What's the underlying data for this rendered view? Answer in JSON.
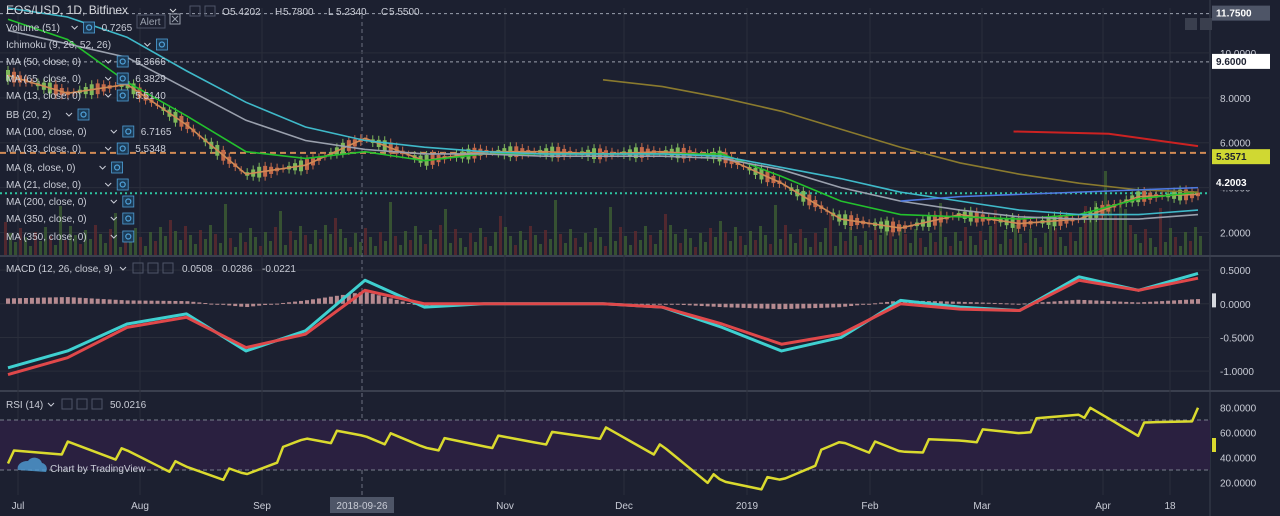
{
  "symbol": {
    "title": "EOS/USD, 1D, Bitfinex",
    "alert_label": "Alert",
    "ohlc": {
      "o_label": "O",
      "o": "5.4202",
      "h_label": "H",
      "h": "5.7800",
      "l_label": "L",
      "l": "5.2340",
      "c_label": "C",
      "c": "5.5500"
    }
  },
  "indicators": [
    {
      "label": "Volume (51)",
      "value": "0.7265",
      "color": "#4f9fd6"
    },
    {
      "label": "Ichimoku (9, 26, 52, 26)",
      "value": "",
      "color": "#d6d8de"
    },
    {
      "label": "MA (50, close, 0)",
      "value": "5.3666",
      "color": "#23c12d"
    },
    {
      "label": "MA (65, close, 0)",
      "value": "6.3829",
      "color": "#d6d8de"
    },
    {
      "label": "MA (13, close, 0)",
      "value": "5.5140",
      "color": "#e8a24a"
    },
    {
      "label": "BB (20, 2)",
      "value": "",
      "color": "#d6d8de"
    },
    {
      "label": "MA (100, close, 0)",
      "value": "6.7165",
      "color": "#3fb9c9"
    },
    {
      "label": "MA (33, close, 0)",
      "value": "5.5348",
      "color": "#4f7ae0"
    },
    {
      "label": "MA (8, close, 0)",
      "value": "",
      "color": "#d6d8de"
    },
    {
      "label": "MA (21, close, 0)",
      "value": "",
      "color": "#d6d8de"
    },
    {
      "label": "MA (200, close, 0)",
      "value": "",
      "color": "#d6d8de"
    },
    {
      "label": "MA (350, close, 0)",
      "value": "",
      "color": "#9aa0ad"
    },
    {
      "label": "MA (350, close, 0)",
      "value": "",
      "color": "#d6d8de"
    }
  ],
  "macd": {
    "label": "MACD (12, 26, close, 9)",
    "v1": "0.0508",
    "v2": "0.0286",
    "v3": "-0.0221",
    "c1": "#d6d8de",
    "c2": "#3fd0d0",
    "c3": "#e0484a"
  },
  "rsi": {
    "label": "RSI (14)",
    "value": "50.0216",
    "color": "#dada2e"
  },
  "watermark": "Chart by TradingView",
  "crosshair_date": "2018-09-26",
  "colors": {
    "background": "#1c2030",
    "grid": "#2a2e3b",
    "dashed_line": "#9aa0ad",
    "support_line": "#2ec4a0",
    "red_line": "#cc2222"
  },
  "price_tags": [
    {
      "text": "11.7500",
      "bg": "#4e5567",
      "fg": "#ffffff"
    },
    {
      "text": "9.6000",
      "bg": "#ffffff",
      "fg": "#1c2030"
    },
    {
      "text": "5.3571",
      "bg": "#d0d832",
      "fg": "#1c2030"
    },
    {
      "text": "4.2003",
      "bg": "#1c2030",
      "fg": "#ffffff"
    }
  ],
  "chart_data": [
    {
      "type": "line",
      "panel": "price",
      "title": "EOS/USD, 1D, Bitfinex",
      "y_ticks": [
        2.0,
        4.0,
        6.0,
        8.0,
        10.0
      ],
      "y_tick_labels": [
        "2.0000",
        "4.0000",
        "6.0000",
        "8.0000",
        "10.0000"
      ],
      "x_tick_labels": [
        "Jul",
        "Aug",
        "Sep",
        "Nov",
        "Dec",
        "2019",
        "Feb",
        "Mar",
        "Apr",
        "18"
      ],
      "ylim": [
        1.0,
        12.0
      ],
      "horizontal_lines": [
        {
          "value": 11.75,
          "style": "dashed"
        },
        {
          "value": 9.6,
          "style": "dashed"
        },
        {
          "value": 5.55,
          "style": "dashed-orange"
        },
        {
          "value": 3.75,
          "style": "dotted-teal"
        }
      ],
      "x": [
        0,
        5,
        10,
        15,
        20,
        25,
        30,
        35,
        40,
        45,
        50,
        55,
        60,
        65,
        70,
        75,
        80,
        85,
        90,
        95,
        100
      ],
      "series": [
        {
          "color": "#d08a55",
          "values": [
            9.0,
            8.2,
            8.6,
            6.8,
            4.6,
            5.0,
            6.2,
            5.2,
            5.6,
            5.6,
            5.5,
            5.6,
            5.4,
            4.2,
            2.6,
            2.2,
            2.8,
            2.4,
            2.6,
            3.6,
            3.7
          ]
        },
        {
          "color": "#23c12d",
          "values": [
            11.5,
            10.6,
            8.7,
            7.2,
            5.6,
            5.3,
            5.6,
            5.2,
            5.5,
            5.5,
            5.5,
            5.5,
            5.5,
            4.5,
            3.4,
            2.8,
            2.7,
            2.6,
            2.8,
            3.5,
            3.8
          ]
        },
        {
          "color": "#3fb9c9",
          "values": [
            12.0,
            11.6,
            10.7,
            9.2,
            7.8,
            6.7,
            6.1,
            5.8,
            5.6,
            5.5,
            5.5,
            5.5,
            5.4,
            4.9,
            4.4,
            3.8,
            3.4,
            3.0,
            2.8,
            2.8,
            3.0
          ]
        },
        {
          "color": "#9aa0ad",
          "values": [
            11.0,
            10.4,
            9.8,
            8.4,
            7.0,
            6.1,
            5.7,
            5.5,
            5.5,
            5.4,
            5.4,
            5.4,
            5.3,
            4.8,
            4.0,
            3.4,
            3.0,
            2.7,
            2.6,
            2.6,
            2.8
          ]
        },
        {
          "color": "#8a7a2e",
          "values": [
            null,
            null,
            null,
            null,
            null,
            null,
            null,
            null,
            null,
            null,
            8.8,
            8.5,
            8.0,
            7.4,
            6.6,
            5.8,
            5.1,
            4.6,
            4.2,
            3.9,
            3.8
          ]
        },
        {
          "color": "#4f7ae0",
          "values": [
            null,
            null,
            null,
            null,
            null,
            null,
            null,
            null,
            null,
            null,
            null,
            null,
            null,
            null,
            null,
            3.4,
            3.6,
            3.7,
            3.8,
            3.9,
            4.0
          ]
        }
      ]
    },
    {
      "type": "line",
      "panel": "macd",
      "title": "MACD (12, 26, close, 9)",
      "y_ticks": [
        0.5,
        0.0,
        -0.5,
        -1.0
      ],
      "y_tick_labels": [
        "0.5000",
        "0.0000",
        "-0.5000",
        "-1.0000"
      ],
      "ylim": [
        -1.25,
        0.65
      ],
      "x": [
        0,
        5,
        10,
        15,
        20,
        25,
        30,
        35,
        40,
        45,
        50,
        55,
        60,
        65,
        70,
        75,
        80,
        85,
        90,
        95,
        100
      ],
      "series": [
        {
          "color": "#3fd0d0",
          "values": [
            -0.95,
            -0.7,
            -0.3,
            -0.15,
            -0.7,
            -0.4,
            0.35,
            -0.05,
            0.0,
            0.0,
            0.0,
            -0.05,
            -0.35,
            -0.7,
            -0.5,
            0.05,
            -0.05,
            -0.1,
            0.4,
            0.2,
            0.45
          ]
        },
        {
          "color": "#e0484a",
          "values": [
            -1.05,
            -0.8,
            -0.35,
            -0.2,
            -0.65,
            -0.45,
            0.2,
            0.0,
            0.0,
            0.0,
            0.0,
            -0.05,
            -0.3,
            -0.6,
            -0.45,
            0.0,
            -0.08,
            -0.1,
            0.35,
            0.2,
            0.38
          ]
        }
      ],
      "histogram": [
        0.08,
        0.1,
        0.05,
        0.04,
        -0.05,
        0.05,
        0.18,
        -0.05,
        0.0,
        0.0,
        0.0,
        0.0,
        -0.05,
        -0.08,
        -0.05,
        0.05,
        0.03,
        0.0,
        0.06,
        0.02,
        0.07
      ]
    },
    {
      "type": "line",
      "panel": "rsi",
      "title": "RSI (14)",
      "y_ticks": [
        80,
        60,
        40,
        20
      ],
      "y_tick_labels": [
        "80.0000",
        "60.0000",
        "40.0000",
        "20.0000"
      ],
      "ylim": [
        10,
        90
      ],
      "band": [
        30,
        70
      ],
      "x": [
        0,
        5,
        10,
        15,
        20,
        25,
        30,
        35,
        40,
        45,
        50,
        55,
        60,
        65,
        70,
        75,
        80,
        85,
        90,
        95,
        100
      ],
      "series": [
        {
          "color": "#dada2e",
          "values": [
            40,
            48,
            42,
            30,
            25,
            55,
            58,
            50,
            52,
            55,
            60,
            45,
            18,
            20,
            52,
            45,
            55,
            62,
            78,
            62,
            75
          ]
        }
      ]
    }
  ]
}
